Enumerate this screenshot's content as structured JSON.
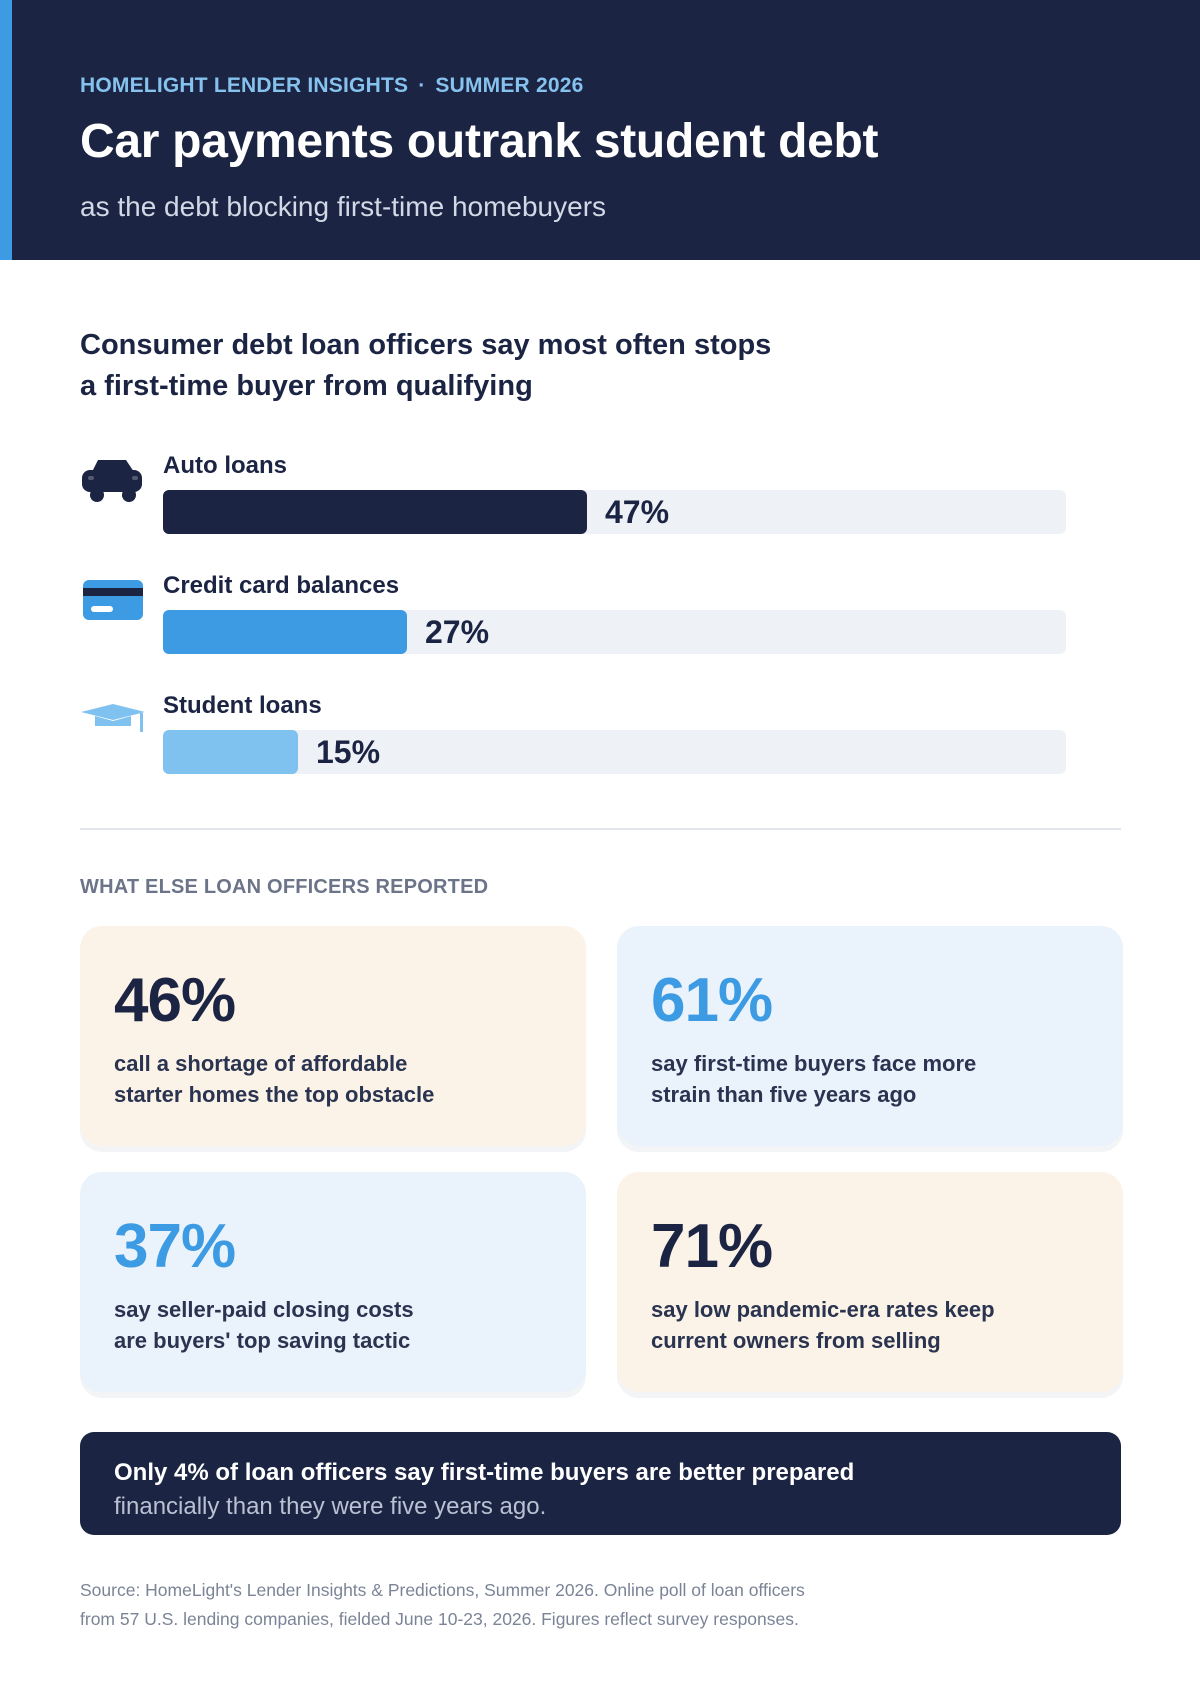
{
  "header": {
    "eyebrow_brand": "HOMELIGHT LENDER INSIGHTS",
    "eyebrow_separator": "·",
    "eyebrow_season": "SUMMER 2026",
    "title": "Car payments outrank student debt",
    "subtitle": "as the debt blocking first-time homebuyers"
  },
  "colors": {
    "navy": "#1b2442",
    "accent_blue": "#3c9be3",
    "light_blue": "#7fc1ef",
    "track": "#eef2f7",
    "warm_card": "#fbf3e7",
    "cool_card": "#eaf2fb"
  },
  "chart_data": {
    "type": "bar",
    "orientation": "horizontal",
    "title_lines": [
      "Consumer debt loan officers say most often stops",
      "a first-time buyer from qualifying"
    ],
    "categories": [
      "Auto loans",
      "Credit card balances",
      "Student loans"
    ],
    "values": [
      47,
      27,
      15
    ],
    "value_labels": [
      "47%",
      "27%",
      "15%"
    ],
    "icons": [
      "car-icon",
      "credit-card-icon",
      "graduation-cap-icon"
    ],
    "bar_colors": [
      "#1b2442",
      "#3c9be3",
      "#7fc1ef"
    ],
    "xlim": [
      0,
      100
    ],
    "unit": "%"
  },
  "section": {
    "label": "WHAT ELSE LOAN OFFICERS REPORTED"
  },
  "stats": [
    {
      "value": "46%",
      "lines": [
        "call a shortage of affordable",
        "starter homes the top obstacle"
      ],
      "tone": "warm",
      "value_color": "dark"
    },
    {
      "value": "61%",
      "lines": [
        "say first-time buyers face more",
        "strain than five years ago"
      ],
      "tone": "cool",
      "value_color": "blue"
    },
    {
      "value": "37%",
      "lines": [
        "say seller-paid closing costs",
        "are buyers' top saving tactic"
      ],
      "tone": "cool",
      "value_color": "blue"
    },
    {
      "value": "71%",
      "lines": [
        "say low pandemic-era rates keep",
        "current owners from selling"
      ],
      "tone": "warm",
      "value_color": "dark"
    }
  ],
  "callout": {
    "strong": "Only 4% of loan officers say first-time buyers are better prepared",
    "light": "financially than they were five years ago."
  },
  "source": {
    "lines": [
      "Source: HomeLight's Lender Insights & Predictions, Summer 2026. Online poll of loan officers",
      "from 57 U.S. lending companies, fielded June 10-23, 2026. Figures reflect survey responses."
    ]
  }
}
